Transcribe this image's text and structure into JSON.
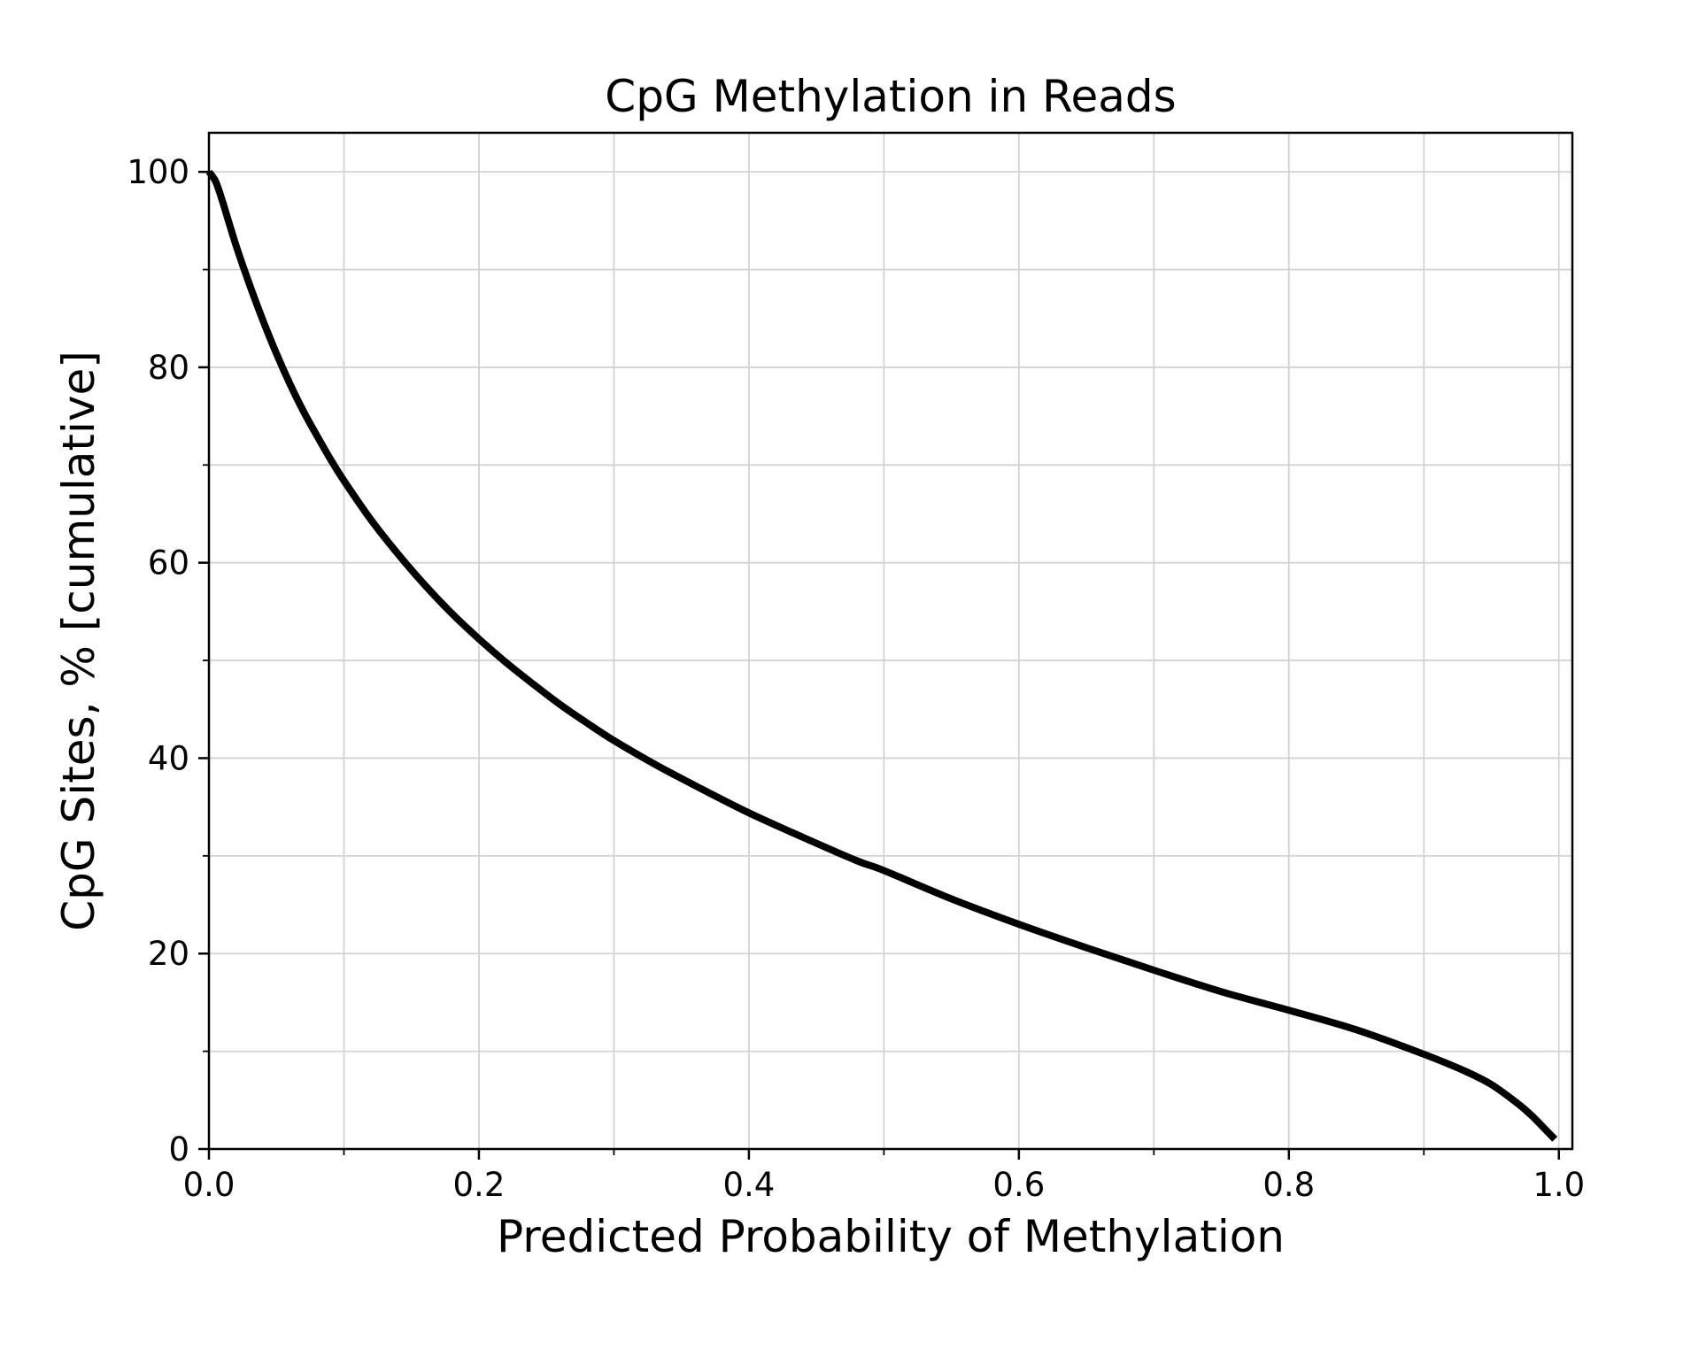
{
  "chart_data": {
    "type": "line",
    "title": "CpG Methylation in Reads",
    "xlabel": "Predicted Probability of Methylation",
    "ylabel": "CpG Sites, % [cumulative]",
    "xlim": [
      0.0,
      1.01
    ],
    "ylim": [
      0,
      104
    ],
    "x_ticks": [
      0.0,
      0.2,
      0.4,
      0.6,
      0.8,
      1.0
    ],
    "x_tick_labels": [
      "0.0",
      "0.2",
      "0.4",
      "0.6",
      "0.8",
      "1.0"
    ],
    "x_minor_ticks": [
      0.1,
      0.3,
      0.5,
      0.7,
      0.9
    ],
    "y_ticks": [
      0,
      20,
      40,
      60,
      80,
      100
    ],
    "y_tick_labels": [
      "0",
      "20",
      "40",
      "60",
      "80",
      "100"
    ],
    "y_minor_ticks": [
      10,
      30,
      50,
      70,
      90
    ],
    "grid": true,
    "legend": "none",
    "line_color": "#000000",
    "grid_color": "#d3d3d3",
    "series": [
      {
        "name": "CpG Sites cumulative",
        "x": [
          0.0,
          0.005,
          0.01,
          0.02,
          0.03,
          0.04,
          0.05,
          0.06,
          0.07,
          0.08,
          0.09,
          0.1,
          0.12,
          0.14,
          0.16,
          0.18,
          0.2,
          0.22,
          0.24,
          0.26,
          0.28,
          0.3,
          0.33,
          0.36,
          0.4,
          0.44,
          0.48,
          0.5,
          0.55,
          0.6,
          0.65,
          0.7,
          0.75,
          0.8,
          0.85,
          0.9,
          0.93,
          0.95,
          0.97,
          0.98,
          0.99,
          0.997
        ],
        "y": [
          100,
          99.0,
          97.0,
          92.5,
          88.5,
          84.8,
          81.4,
          78.3,
          75.5,
          73.0,
          70.6,
          68.4,
          64.4,
          60.9,
          57.7,
          54.8,
          52.2,
          49.8,
          47.6,
          45.5,
          43.6,
          41.8,
          39.4,
          37.2,
          34.4,
          31.9,
          29.5,
          28.5,
          25.6,
          23.0,
          20.6,
          18.3,
          16.1,
          14.2,
          12.2,
          9.7,
          8.0,
          6.6,
          4.6,
          3.4,
          2.0,
          1.0
        ]
      }
    ]
  }
}
